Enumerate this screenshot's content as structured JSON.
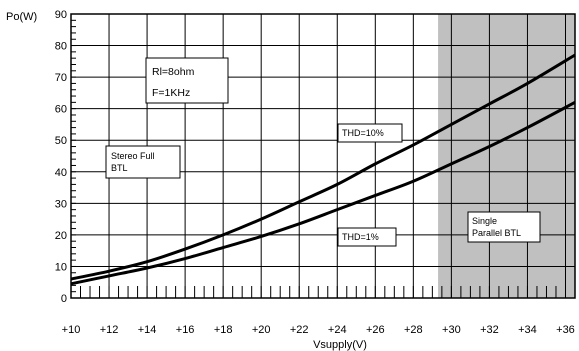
{
  "chart_data": {
    "type": "line",
    "xlabel": "Vsupply(V)",
    "ylabel": "Po(W)",
    "xlim": [
      10,
      36.5
    ],
    "ylim": [
      0,
      90
    ],
    "x_ticks": [
      10,
      12,
      14,
      16,
      18,
      20,
      22,
      24,
      26,
      28,
      30,
      32,
      34,
      36
    ],
    "x_tick_labels": [
      "+10",
      "+12",
      "+14",
      "+16",
      "+18",
      "+20",
      "+22",
      "+24",
      "+26",
      "+28",
      "+30",
      "+32",
      "+34",
      "+36"
    ],
    "y_ticks": [
      0,
      10,
      20,
      30,
      40,
      50,
      60,
      70,
      80,
      90
    ],
    "y_tick_labels": [
      "0",
      "10",
      "20",
      "30",
      "40",
      "50",
      "60",
      "70",
      "80",
      "90"
    ],
    "grid": true,
    "shaded_region": {
      "x": [
        29.3,
        36.5
      ],
      "color": "#c0c0c0"
    },
    "series": [
      {
        "name": "THD=10%",
        "x": [
          10,
          12,
          14,
          16,
          18,
          20,
          22,
          24,
          26,
          28,
          30,
          32,
          34,
          36.5
        ],
        "y": [
          6,
          8.5,
          11.5,
          15.5,
          20,
          25,
          30.5,
          36,
          42.5,
          48.5,
          55,
          61.5,
          68,
          77
        ]
      },
      {
        "name": "THD=1%",
        "x": [
          10,
          12,
          14,
          16,
          18,
          20,
          22,
          24,
          26,
          28,
          30,
          32,
          34,
          36.5
        ],
        "y": [
          4.5,
          7,
          9.5,
          12.5,
          16,
          19.5,
          23.5,
          28,
          32.5,
          37,
          42.5,
          48,
          54,
          62
        ]
      }
    ],
    "annotations": {
      "rl": "Rl=8ohm",
      "freq": "F=1KHz",
      "stereo_line1": "Stereo Full",
      "stereo_line2": "BTL",
      "thd10": "THD=10%",
      "thd1": "THD=1%",
      "single_line1": "Single",
      "single_line2": "Parallel BTL"
    }
  }
}
